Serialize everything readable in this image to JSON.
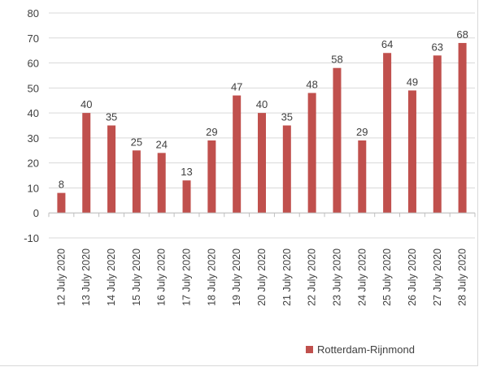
{
  "chart_data": {
    "type": "bar",
    "categories": [
      "12 July 2020",
      "13 July 2020",
      "14 July 2020",
      "15 July 2020",
      "16 July 2020",
      "17 July 2020",
      "18 July 2020",
      "19 July 2020",
      "20 July 2020",
      "21 July 2020",
      "22 July 2020",
      "23 July 2020",
      "24 July 2020",
      "25 July 2020",
      "26 July 2020",
      "27 July 2020",
      "28 July 2020"
    ],
    "series": [
      {
        "name": "Rotterdam-Rijnmond",
        "values": [
          8,
          40,
          35,
          25,
          24,
          13,
          29,
          47,
          40,
          35,
          48,
          58,
          29,
          64,
          49,
          63,
          68
        ],
        "color": "#c0504d"
      }
    ],
    "yticks": [
      "80",
      "70",
      "60",
      "50",
      "40",
      "30",
      "20",
      "10",
      "0",
      "-10"
    ],
    "ylim": [
      -10,
      80
    ],
    "grid": true,
    "gridcolor": "#d9d9d9",
    "legend_position": "bottom-right",
    "title": "",
    "xlabel": "",
    "ylabel": ""
  }
}
